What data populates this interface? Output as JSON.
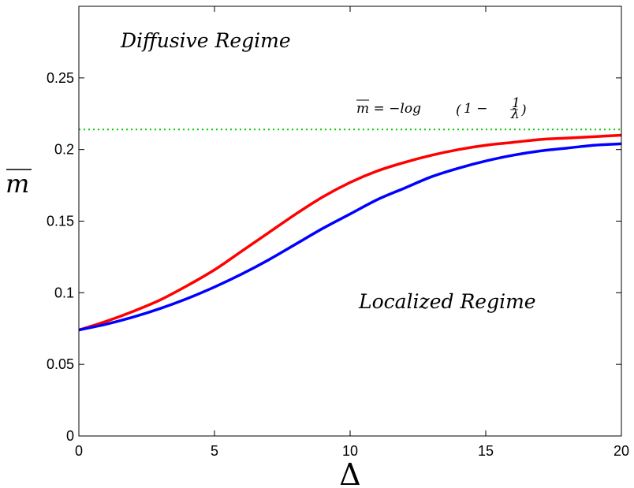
{
  "chart_data": {
    "type": "line",
    "xlabel": "Δ",
    "ylabel": "m",
    "xlim": [
      0,
      20
    ],
    "ylim": [
      0,
      0.3
    ],
    "xticks": [
      0,
      5,
      10,
      15,
      20
    ],
    "yticks": [
      0,
      0.05,
      0.1,
      0.15,
      0.2,
      0.25
    ],
    "xtick_labels": [
      "0",
      "5",
      "10",
      "15",
      "20"
    ],
    "ytick_labels": [
      "0",
      "0.05",
      "0.1",
      "0.15",
      "0.2",
      "0.25"
    ],
    "grid": false,
    "x": [
      0,
      1,
      2,
      3,
      4,
      5,
      6,
      7,
      8,
      9,
      10,
      11,
      12,
      13,
      14,
      15,
      16,
      17,
      18,
      19,
      20
    ],
    "series": [
      {
        "color": "#ff0000",
        "style": "solid",
        "values": [
          0.074,
          0.08,
          0.087,
          0.095,
          0.105,
          0.116,
          0.129,
          0.142,
          0.155,
          0.167,
          0.177,
          0.185,
          0.191,
          0.196,
          0.2,
          0.203,
          0.205,
          0.207,
          0.208,
          0.209,
          0.21
        ]
      },
      {
        "color": "#0000ff",
        "style": "solid",
        "values": [
          0.074,
          0.078,
          0.083,
          0.089,
          0.096,
          0.104,
          0.113,
          0.123,
          0.134,
          0.145,
          0.155,
          0.165,
          0.173,
          0.181,
          0.187,
          0.192,
          0.196,
          0.199,
          0.201,
          0.203,
          0.204
        ]
      },
      {
        "color": "#00cc00",
        "style": "dotted",
        "values": [
          0.214,
          0.214,
          0.214,
          0.214,
          0.214,
          0.214,
          0.214,
          0.214,
          0.214,
          0.214,
          0.214,
          0.214,
          0.214,
          0.214,
          0.214,
          0.214,
          0.214,
          0.214,
          0.214,
          0.214,
          0.214
        ]
      }
    ],
    "annotations": {
      "diffusive": "Diffusive Regime",
      "localized": "Localized Regime",
      "formula_lhs": "m = −log",
      "formula_paren_open": "(",
      "formula_one_minus": "1 −",
      "formula_num": "1",
      "formula_den": "λ",
      "formula_paren_close": ")"
    }
  }
}
